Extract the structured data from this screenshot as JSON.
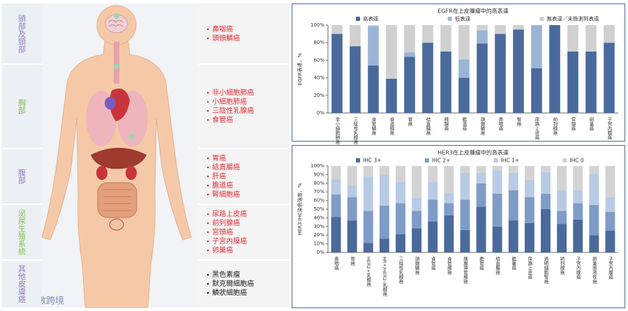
{
  "regions": [
    {
      "name": "頭部及頸部",
      "cancers": [
        "鼻咽癌",
        "頭頸鱗癌"
      ]
    },
    {
      "name": "胸部",
      "cancers": [
        "非小細胞肺癌",
        "小細胞肺癌",
        "三陰性乳腺癌",
        "食管癌"
      ]
    },
    {
      "name": "腹部",
      "cancers": [
        "胃癌",
        "結直腸癌",
        "肝癌",
        "膽道癌",
        "腎細胞癌"
      ]
    },
    {
      "name": "泌尿生殖系統",
      "cancers": [
        "尿路上皮癌",
        "前列腺癌",
        "宮頸癌",
        "子宮內膜癌",
        "卵巢癌"
      ]
    },
    {
      "name": "其他皮膚癌",
      "cancers": [
        "黑色素瘤",
        "默克爾細胞癌",
        "鱗狀細胞癌"
      ]
    }
  ],
  "watermark": "大數跨境",
  "chart_data": [
    {
      "type": "bar",
      "stacked": true,
      "title": "EGFR在上皮腫瘤中的高表達",
      "y_label": "EGFR表達，%",
      "categories": [
        "非小細胞肺癌",
        "三陰性乳腺癌",
        "食管鱗癌",
        "食道腺癌",
        "胃癌",
        "結直腸癌",
        "胰腺癌",
        "膽道癌",
        "頭頸鱗癌",
        "鼻咽癌",
        "腎癌",
        "尿路上皮癌",
        "前列腺癌",
        "宮頸癌",
        "卵巢癌",
        "子宮內膜癌"
      ],
      "series": [
        {
          "name": "高表達",
          "color": "#4a6a9c",
          "values": [
            90,
            76,
            54,
            39,
            64,
            80,
            70,
            40,
            79,
            90,
            95,
            51,
            100,
            70,
            70,
            80
          ]
        },
        {
          "name": "低表達",
          "color": "#9bb5d6",
          "values": [
            0,
            0,
            45,
            0,
            5,
            0,
            0,
            21,
            15,
            0,
            0,
            49,
            0,
            0,
            0,
            0
          ]
        },
        {
          "name": "無表達／未檢測到表達",
          "color": "#d0d0d0",
          "values": [
            10,
            24,
            1,
            61,
            31,
            20,
            30,
            39,
            6,
            10,
            5,
            0,
            0,
            30,
            30,
            20
          ]
        }
      ],
      "ylim": [
        0,
        100
      ],
      "yticks": [
        {
          "value": 0,
          "label": "0%"
        },
        {
          "value": 20,
          "label": "20%"
        },
        {
          "value": 40,
          "label": "40%"
        },
        {
          "value": 60,
          "label": "60%"
        },
        {
          "value": 80,
          "label": "80%"
        },
        {
          "value": 100,
          "label": "100%"
        }
      ],
      "legend": "top"
    },
    {
      "type": "bar",
      "stacked": true,
      "title": "HER3在上皮腫瘤中的高表達",
      "y_label": "HER3 IHC染色強度，%",
      "categories": [
        "鼻咽癌",
        "胃癌",
        "HER2+乳腺癌",
        "HR+/HER2-乳腺癌",
        "三陰性乳腺癌",
        "頭頸鱗癌",
        "食管癌",
        "食管腺癌",
        "胰腺導管腺癌",
        "膽管癌",
        "結直腸癌",
        "膽囊癌",
        "尿路上皮癌",
        "透明細胞腎癌",
        "前列腺癌",
        "子宮內膜癌",
        "卵巢漿液性癌",
        "子宮內膜癌"
      ],
      "series": [
        {
          "name": "IHC 3+",
          "color": "#4a6a9c",
          "values": [
            41,
            37,
            11,
            16,
            21,
            28,
            36,
            43,
            26,
            53,
            30,
            37,
            34,
            50,
            33,
            38,
            20,
            25
          ]
        },
        {
          "name": "IHC 2+",
          "color": "#7f9cc6",
          "values": [
            26,
            27,
            37,
            38,
            36,
            20,
            25,
            14,
            35,
            27,
            38,
            35,
            30,
            18,
            15,
            19,
            35,
            22
          ]
        },
        {
          "name": "IHC 1+",
          "color": "#b9cbe4",
          "values": [
            18,
            14,
            40,
            36,
            25,
            15,
            21,
            12,
            31,
            12,
            27,
            20,
            20,
            25,
            24,
            15,
            36,
            17
          ]
        },
        {
          "name": "IHC 0",
          "color": "#d3d3d3",
          "values": [
            15,
            22,
            12,
            10,
            18,
            37,
            18,
            31,
            8,
            8,
            5,
            8,
            16,
            7,
            28,
            28,
            9,
            36
          ]
        }
      ],
      "ylim": [
        0,
        100
      ],
      "yticks": [
        {
          "value": 0,
          "label": "0%"
        },
        {
          "value": 10,
          "label": "10%"
        },
        {
          "value": 20,
          "label": "20%"
        },
        {
          "value": 30,
          "label": "30%"
        },
        {
          "value": 40,
          "label": "40%"
        },
        {
          "value": 50,
          "label": "50%"
        },
        {
          "value": 60,
          "label": "60%"
        },
        {
          "value": 70,
          "label": "70%"
        },
        {
          "value": 80,
          "label": "80%"
        },
        {
          "value": 90,
          "label": "90%"
        },
        {
          "value": 100,
          "label": "100%"
        }
      ],
      "legend": "top"
    }
  ]
}
